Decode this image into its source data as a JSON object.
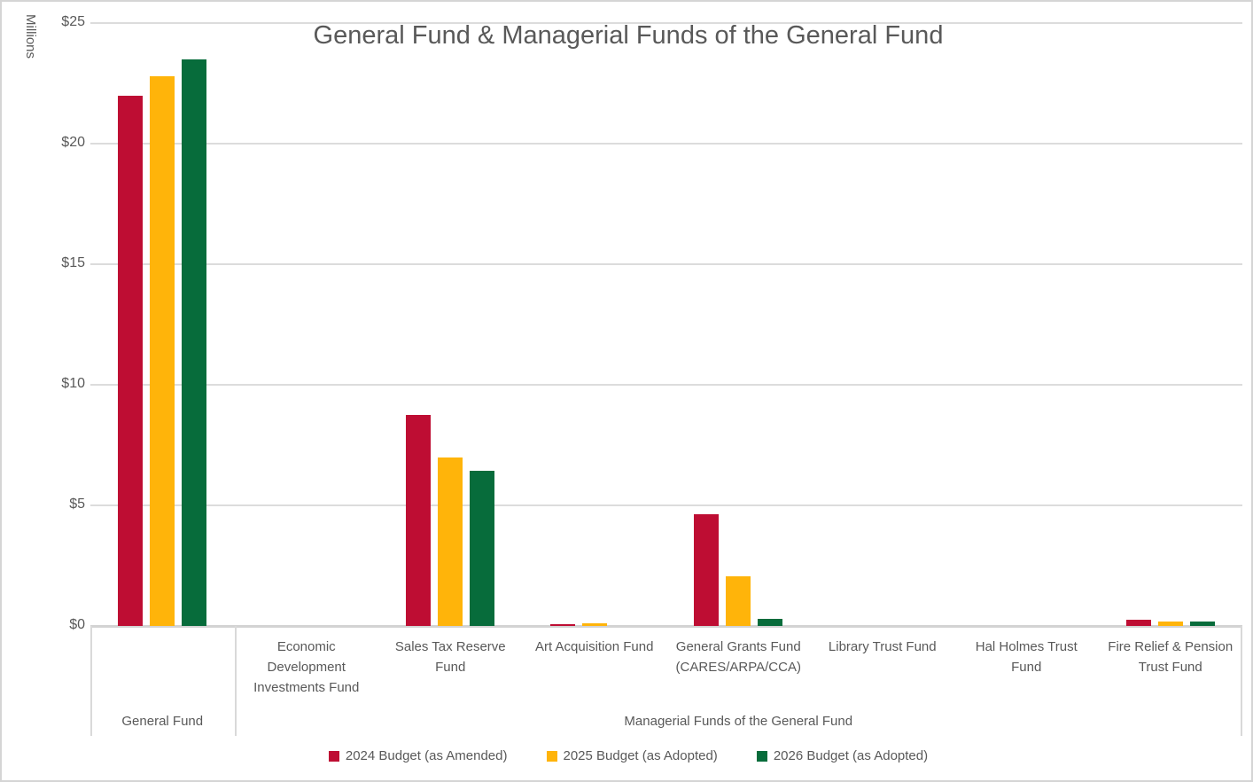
{
  "chart_data": {
    "type": "bar",
    "title": "General Fund & Managerial Funds of the General Fund",
    "ylabel": "Millions",
    "xlabel": "",
    "ylim": [
      0,
      25
    ],
    "ytick_values": [
      0,
      5,
      10,
      15,
      20,
      25
    ],
    "ytick_labels": [
      "$0",
      "$5",
      "$10",
      "$15",
      "$20",
      "$25"
    ],
    "grid": true,
    "legend_position": "bottom",
    "categories": [
      "General Fund",
      "Economic Development Investments Fund",
      "Sales Tax Reserve Fund",
      "Art Acquisition Fund",
      "General Grants Fund (CARES/ARPA/CCA)",
      "Library Trust Fund",
      "Hal Holmes Trust Fund",
      "Fire Relief & Pension Trust Fund"
    ],
    "category_label_lines": [
      [],
      [
        "Economic",
        "Development",
        "Investments Fund"
      ],
      [
        "Sales Tax Reserve",
        "Fund"
      ],
      [
        "Art Acquisition Fund"
      ],
      [
        "General Grants Fund",
        "(CARES/ARPA/CCA)"
      ],
      [
        "Library Trust Fund"
      ],
      [
        "Hal Holmes Trust",
        "Fund"
      ],
      [
        "Fire Relief & Pension",
        "Trust Fund"
      ]
    ],
    "axis_groups": [
      {
        "label": "General Fund",
        "start": 0,
        "span": 1
      },
      {
        "label": "Managerial Funds of the General Fund",
        "start": 1,
        "span": 7
      }
    ],
    "series": [
      {
        "name": "2024 Budget (as Amended)",
        "color": "#BE0D33",
        "values": [
          22.0,
          0,
          8.75,
          0.08,
          4.65,
          0,
          0,
          0.25
        ]
      },
      {
        "name": "2025 Budget (as Adopted)",
        "color": "#FFB40A",
        "values": [
          22.8,
          0,
          7.0,
          0.1,
          2.05,
          0,
          0,
          0.17
        ]
      },
      {
        "name": "2026 Budget (as Adopted)",
        "color": "#076C3B",
        "values": [
          23.5,
          0,
          6.45,
          0,
          0.3,
          0,
          0,
          0.17
        ]
      }
    ],
    "colors": {
      "text": "#595959",
      "gridline": "#DCDCDC",
      "axis_line": "#D3D3D3"
    }
  }
}
